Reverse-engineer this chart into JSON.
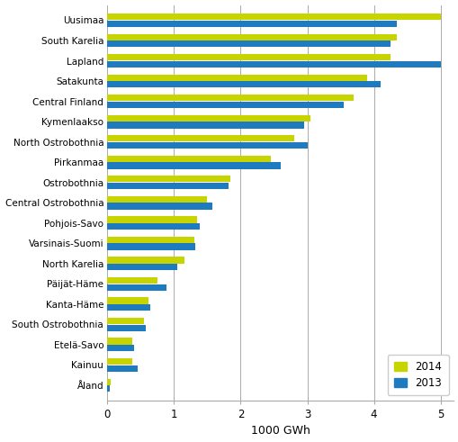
{
  "regions": [
    "Uusimaa",
    "South Karelia",
    "Lapland",
    "Satakunta",
    "Central Finland",
    "Kymenlaakso",
    "North Ostrobothnia",
    "Pirkanmaa",
    "Ostrobothnia",
    "Central Ostrobothnia",
    "Pohjois-Savo",
    "Varsinais-Suomi",
    "North Karelia",
    "Päijät-Häme",
    "Kanta-Häme",
    "South Ostrobothnia",
    "Etelä-Savo",
    "Kainuu",
    "Åland"
  ],
  "values_2014": [
    5.0,
    4.35,
    4.25,
    3.9,
    3.7,
    3.05,
    2.8,
    2.45,
    1.85,
    1.5,
    1.35,
    1.3,
    1.15,
    0.75,
    0.62,
    0.55,
    0.38,
    0.38,
    0.05
  ],
  "values_2013": [
    4.35,
    4.25,
    5.0,
    4.1,
    3.55,
    2.95,
    3.0,
    2.6,
    1.82,
    1.57,
    1.38,
    1.32,
    1.05,
    0.88,
    0.65,
    0.58,
    0.4,
    0.45,
    0.04
  ],
  "color_2014": "#c8d400",
  "color_2013": "#1f7bbf",
  "xlabel": "1000 GWh",
  "xlim": [
    0,
    5.2
  ],
  "xticks": [
    0,
    1,
    2,
    3,
    4,
    5
  ],
  "legend_2014": "2014",
  "legend_2013": "2013",
  "grid_color": "#aaaaaa",
  "background_color": "#ffffff",
  "bar_height": 0.32,
  "bar_gap": 0.02,
  "label_fontsize": 7.5,
  "tick_fontsize": 8.5,
  "xlabel_fontsize": 9
}
